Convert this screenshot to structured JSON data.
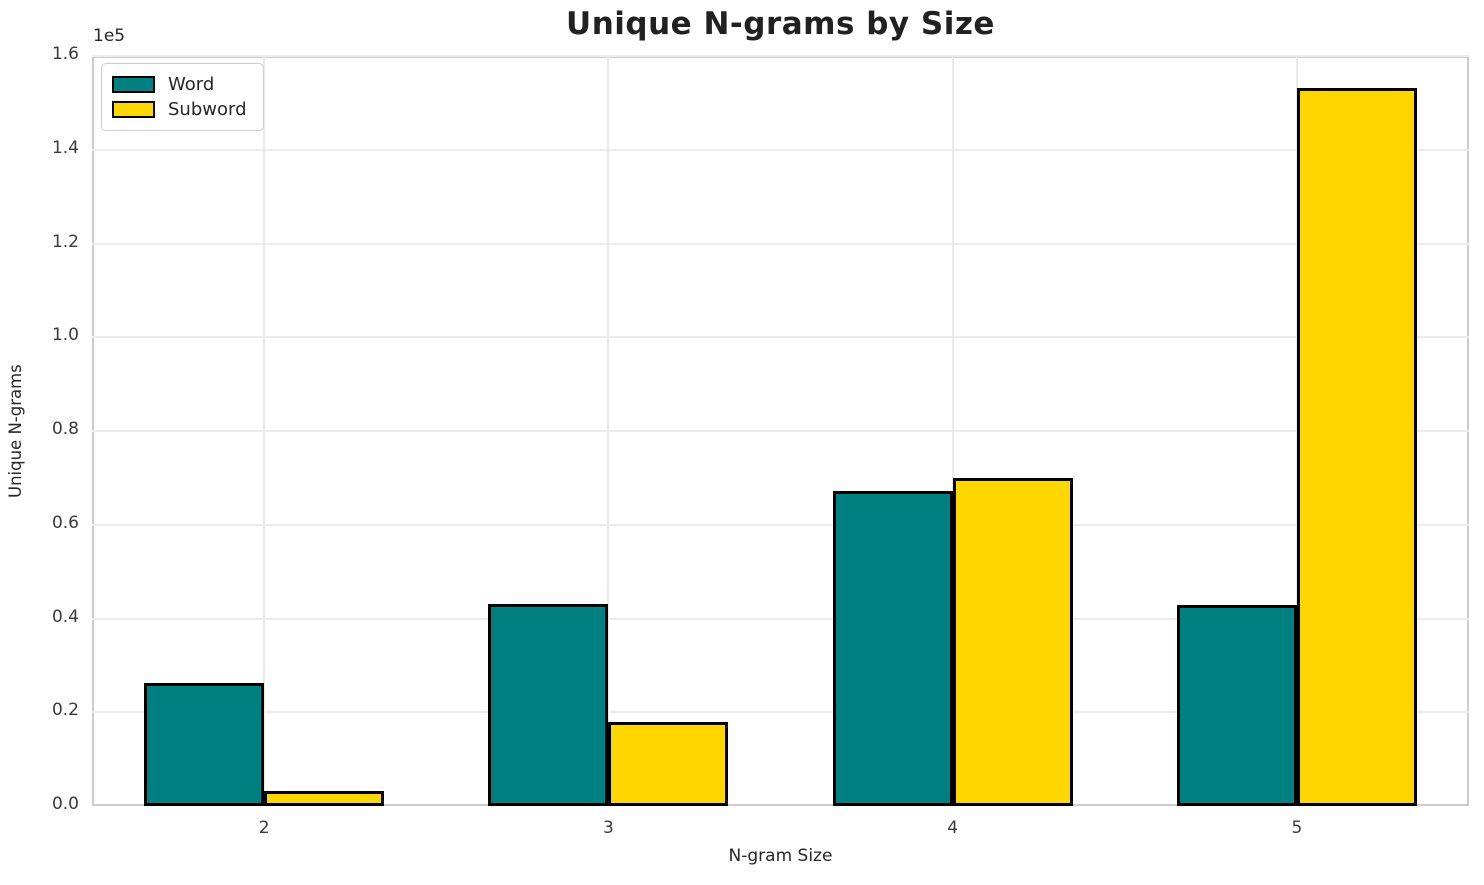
{
  "chart_data": {
    "type": "bar",
    "title": "Unique N-grams by Size",
    "xlabel": "N-gram Size",
    "ylabel": "Unique N-grams",
    "y_offset_label": "1e5",
    "categories": [
      "2",
      "3",
      "4",
      "5"
    ],
    "series": [
      {
        "name": "Word",
        "color": "#008080",
        "values": [
          26200,
          43100,
          67200,
          42800
        ]
      },
      {
        "name": "Subword",
        "color": "#FFD700",
        "values": [
          3200,
          17900,
          69900,
          153200
        ]
      }
    ],
    "bar_edge_color": "#000000",
    "bar_width_fraction": 0.35,
    "ylim": [
      0,
      160000
    ],
    "ytick_values": [
      0,
      20000,
      40000,
      60000,
      80000,
      100000,
      120000,
      140000,
      160000
    ],
    "ytick_labels": [
      "0.0",
      "0.2",
      "0.4",
      "0.6",
      "0.8",
      "1.0",
      "1.2",
      "1.4",
      "1.6"
    ],
    "grid": true,
    "legend_position": "upper left"
  }
}
